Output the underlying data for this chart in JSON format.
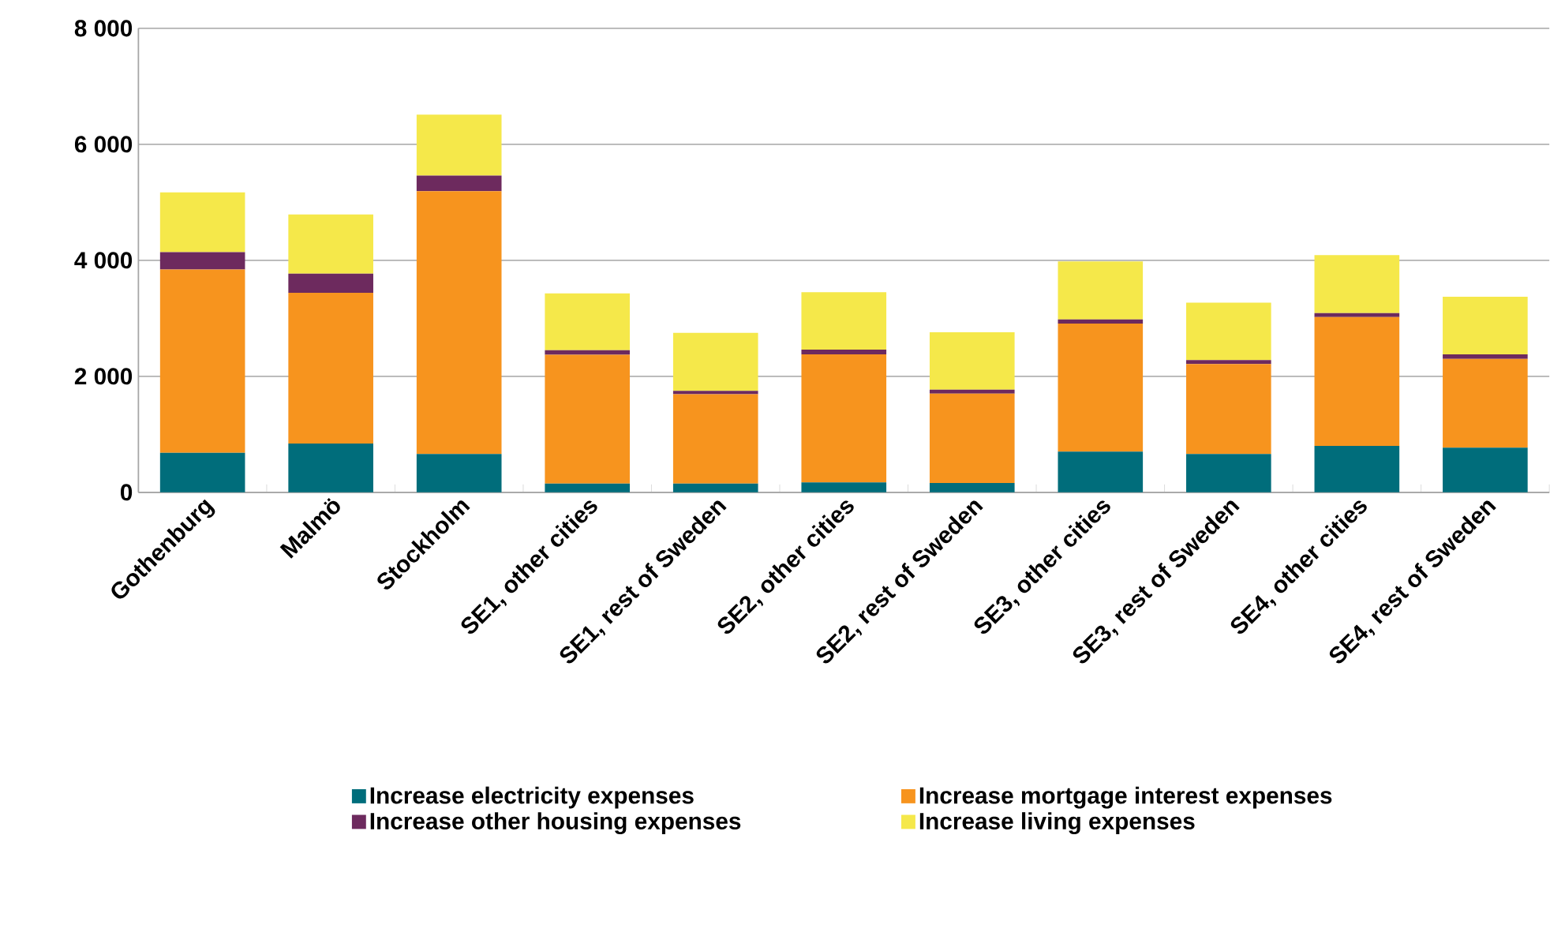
{
  "chart_data": {
    "type": "bar",
    "stacked": true,
    "categories": [
      "Gothenburg",
      "Malmö",
      "Stockholm",
      "SE1, other cities",
      "SE1, rest of Sweden",
      "SE2, other cities",
      "SE2, rest of Sweden",
      "SE3, other cities",
      "SE3, rest of Sweden",
      "SE4, other cities",
      "SE4, rest of Sweden"
    ],
    "series": [
      {
        "name": "Increase electricity expenses",
        "color": "#006d7b",
        "values": [
          680,
          840,
          660,
          150,
          150,
          170,
          160,
          700,
          660,
          800,
          770
        ]
      },
      {
        "name": "Increase mortgage interest expenses",
        "color": "#f7941e",
        "values": [
          3160,
          2600,
          4530,
          2220,
          1540,
          2210,
          1540,
          2210,
          1550,
          2220,
          1530
        ]
      },
      {
        "name": "Increase other housing expenses",
        "color": "#6d2a5e",
        "values": [
          300,
          330,
          270,
          80,
          60,
          80,
          70,
          70,
          70,
          70,
          80
        ]
      },
      {
        "name": "Increase living expenses",
        "color": "#f5e84a",
        "values": [
          1030,
          1020,
          1050,
          980,
          1000,
          990,
          990,
          1000,
          990,
          1000,
          990
        ]
      }
    ],
    "ylim": [
      0,
      8000
    ],
    "yticks": [
      {
        "value": 0,
        "label": "0"
      },
      {
        "value": 2000,
        "label": "2 000"
      },
      {
        "value": 4000,
        "label": "4 000"
      },
      {
        "value": 6000,
        "label": "6 000"
      },
      {
        "value": 8000,
        "label": "8 000"
      }
    ],
    "grid": "y",
    "legend": "bottom"
  }
}
